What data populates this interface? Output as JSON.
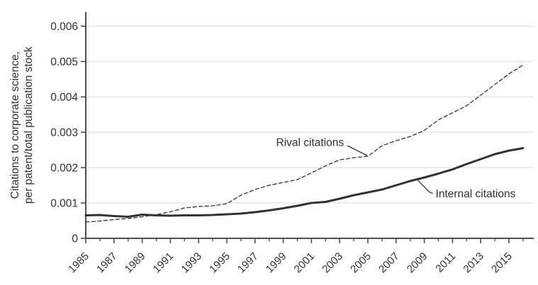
{
  "figure": {
    "background": "#ffffff",
    "text_color": "#2d3138",
    "grid_color": "#d9d9d9",
    "axis_color": "#4a4e55",
    "line_color": "#2e323a"
  },
  "chart_data": {
    "type": "line",
    "title": "",
    "xlabel": "",
    "ylabel_lines": [
      "Citations to corporate science,",
      "per patent/total publication stock"
    ],
    "ylim": [
      0,
      0.006
    ],
    "yticks": [
      0,
      0.001,
      0.002,
      0.003,
      0.004,
      0.005,
      0.006
    ],
    "ytick_labels": [
      "0",
      "0.001",
      "0.002",
      "0.003",
      "0.004",
      "0.005",
      "0.006"
    ],
    "xticks_major": [
      1985,
      1987,
      1989,
      1991,
      1993,
      1995,
      1997,
      1999,
      2001,
      2003,
      2005,
      2007,
      2009,
      2011,
      2013,
      2015
    ],
    "xticks_minor": [
      1986,
      1988,
      1990,
      1992,
      1994,
      1996,
      1998,
      2000,
      2002,
      2004,
      2006,
      2008,
      2010,
      2012,
      2014,
      2016
    ],
    "grid": "horizontal",
    "legend_position": "inline-annotations",
    "x": [
      1985,
      1986,
      1987,
      1988,
      1989,
      1990,
      1991,
      1992,
      1993,
      1994,
      1995,
      1996,
      1997,
      1998,
      1999,
      2000,
      2001,
      2002,
      2003,
      2004,
      2005,
      2006,
      2007,
      2008,
      2009,
      2010,
      2011,
      2012,
      2013,
      2014,
      2015,
      2016
    ],
    "series": [
      {
        "name": "Rival citations",
        "style": "dashed",
        "stroke_width": 1.3,
        "values": [
          0.00046,
          0.00049,
          0.00053,
          0.00056,
          0.00061,
          0.00067,
          0.00075,
          0.00086,
          0.0009,
          0.00092,
          0.00098,
          0.00122,
          0.00138,
          0.0015,
          0.00158,
          0.00166,
          0.00185,
          0.00205,
          0.00222,
          0.00228,
          0.00232,
          0.00262,
          0.00276,
          0.00288,
          0.00305,
          0.00335,
          0.00355,
          0.00375,
          0.00405,
          0.00435,
          0.00465,
          0.0049
        ]
      },
      {
        "name": "Internal citations",
        "style": "solid",
        "stroke_width": 3,
        "values": [
          0.00065,
          0.00066,
          0.00063,
          0.00061,
          0.00067,
          0.00065,
          0.00064,
          0.00065,
          0.00065,
          0.00066,
          0.00068,
          0.0007,
          0.00074,
          0.00079,
          0.00085,
          0.00092,
          0.001,
          0.00103,
          0.00112,
          0.00122,
          0.0013,
          0.00138,
          0.0015,
          0.00162,
          0.00172,
          0.00183,
          0.00195,
          0.0021,
          0.00224,
          0.00238,
          0.00248,
          0.00255
        ]
      }
    ],
    "annotations": [
      {
        "text": "Rival citations",
        "anchor": "end",
        "text_x": 2003.3,
        "text_y": 0.00272,
        "line": [
          [
            2003.55,
            0.00262
          ],
          [
            2004.95,
            0.00234
          ]
        ]
      },
      {
        "text": "Internal citations",
        "anchor": "start",
        "text_x": 2009.8,
        "text_y": 0.00127,
        "line": [
          [
            2008.45,
            0.00168
          ],
          [
            2009.35,
            0.00131
          ],
          [
            2009.6,
            0.00127
          ]
        ]
      }
    ]
  }
}
